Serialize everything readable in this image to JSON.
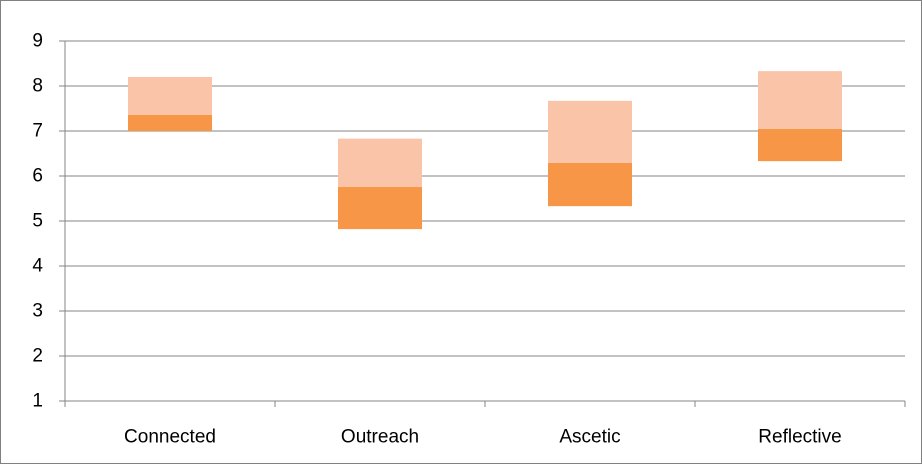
{
  "chart_data": {
    "type": "bar",
    "subtype": "floating-stacked",
    "categories": [
      "Connected",
      "Outreach",
      "Ascetic",
      "Reflective"
    ],
    "series": [
      {
        "role": "lower-segment",
        "color": "#f79646",
        "bottom": [
          7.0,
          4.82,
          5.33,
          6.33
        ],
        "top": [
          7.36,
          5.76,
          6.29,
          7.05
        ]
      },
      {
        "role": "upper-segment",
        "color": "#fac4a8",
        "bottom": [
          7.36,
          5.76,
          6.29,
          7.05
        ],
        "top": [
          8.2,
          6.83,
          7.67,
          8.33
        ]
      }
    ],
    "yticks": [
      "1",
      "2",
      "3",
      "4",
      "5",
      "6",
      "7",
      "8",
      "9"
    ],
    "ylim": [
      1,
      9
    ],
    "title": "",
    "xlabel": "",
    "ylabel": "",
    "grid": true,
    "legend": "none"
  }
}
